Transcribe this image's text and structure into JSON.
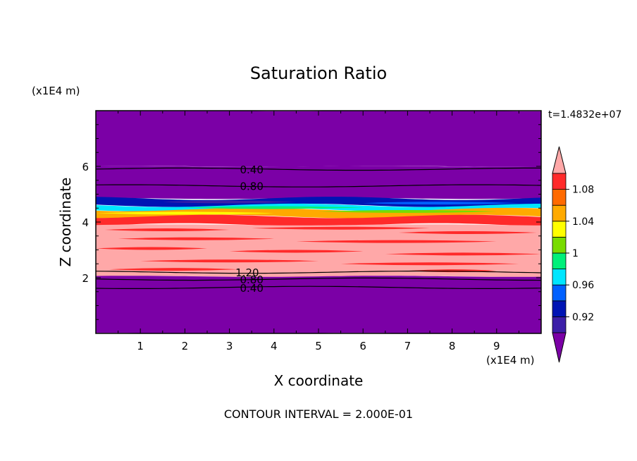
{
  "chart_data": {
    "type": "contour",
    "title": "Saturation Ratio",
    "xlabel": "X coordinate",
    "ylabel": "Z coordinate",
    "x_unit": "(x1E4 m)",
    "y_unit": "(x1E4 m)",
    "timestamp": "t=1.4832e+07",
    "footer": "CONTOUR INTERVAL = 2.000E-01",
    "xlim": [
      0,
      10
    ],
    "ylim": [
      0,
      8
    ],
    "x_ticks": [
      1,
      2,
      3,
      4,
      5,
      6,
      7,
      8,
      9
    ],
    "x_tick_labels": [
      "1",
      "2",
      "3",
      "4",
      "5",
      "6",
      "7",
      "8",
      "9"
    ],
    "y_ticks": [
      2,
      4,
      6
    ],
    "y_tick_labels": [
      "2",
      "4",
      "6"
    ],
    "colorbar": {
      "levels": [
        0.9,
        0.92,
        0.94,
        0.96,
        0.98,
        1.0,
        1.02,
        1.04,
        1.06,
        1.08,
        1.1
      ],
      "colors": [
        "#7b00a6",
        "#3c1fa8",
        "#0014b4",
        "#0060ff",
        "#00e6ff",
        "#00f07a",
        "#78dc00",
        "#ffff00",
        "#ffaa00",
        "#ff6a00",
        "#ff2a2a",
        "#ffa8a8"
      ],
      "tick_values": [
        "0.92",
        "0.96",
        "1",
        "1.04",
        "1.08"
      ],
      "extend": "both"
    },
    "bands": [
      {
        "z_bottom": 6.0,
        "z_top": 8.0,
        "sat": "<0.90",
        "color": "#7b00a6"
      },
      {
        "z_bottom": 4.85,
        "z_top": 6.0,
        "sat": "<0.90",
        "color": "#7b00a6"
      },
      {
        "z_bottom": 4.6,
        "z_top": 4.85,
        "sat": "0.90-0.94",
        "color": "#0014b4"
      },
      {
        "z_bottom": 4.45,
        "z_top": 4.6,
        "sat": "0.96-1.04",
        "color": "#00e6ff"
      },
      {
        "z_bottom": 4.2,
        "z_top": 4.45,
        "sat": "1.04-1.08",
        "color": "#ffaa00"
      },
      {
        "z_bottom": 3.9,
        "z_top": 4.2,
        "sat": "1.08-1.10",
        "color": "#ff2a2a"
      },
      {
        "z_bottom": 2.05,
        "z_top": 3.9,
        "sat": ">1.10",
        "color": "#ffa8a8"
      },
      {
        "z_bottom": 0.0,
        "z_top": 2.05,
        "sat": "<0.90",
        "color": "#7b00a6"
      }
    ],
    "contour_lines": [
      {
        "level": 0.4,
        "z": 5.9,
        "label": "0.40",
        "label_x": 3.5
      },
      {
        "level": 0.8,
        "z": 5.3,
        "label": "0.80",
        "label_x": 3.5
      },
      {
        "level": 1.2,
        "z": 2.2,
        "label": "1.20",
        "label_x": 3.4
      },
      {
        "level": 0.8,
        "z": 1.95,
        "label": "0.80",
        "label_x": 3.5
      },
      {
        "level": 0.4,
        "z": 1.65,
        "label": "0.40",
        "label_x": 3.5
      }
    ]
  }
}
